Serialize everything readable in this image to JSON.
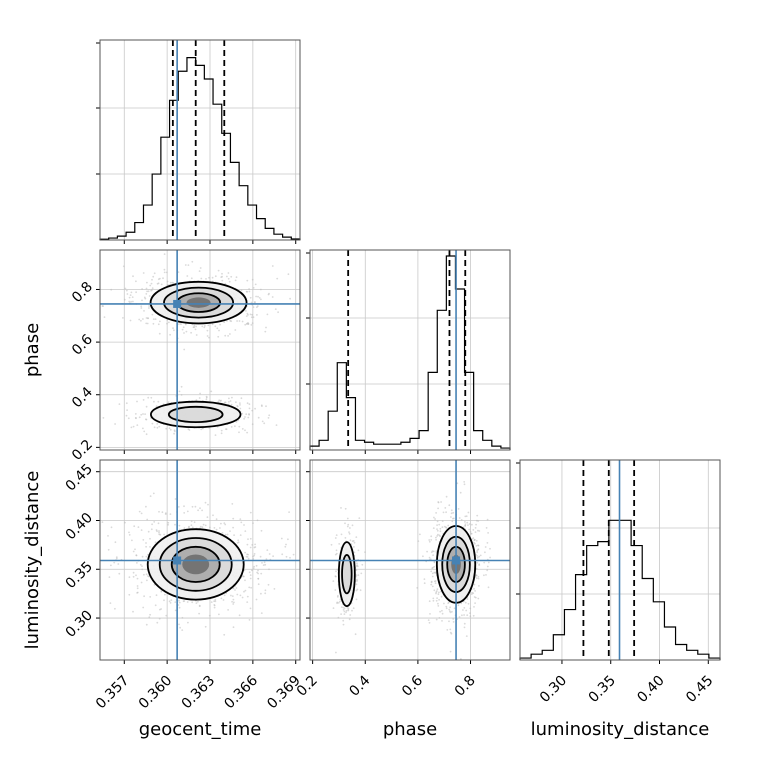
{
  "chart_data": {
    "type": "corner",
    "parameters": [
      "geocent_time",
      "phase",
      "luminosity_distance"
    ],
    "labels": {
      "geocent_time": "geocent_time",
      "phase": "phase",
      "luminosity_distance": "luminosity_distance"
    },
    "ranges": {
      "geocent_time": [
        0.3553,
        0.3693
      ],
      "phase": [
        0.19,
        0.95
      ],
      "luminosity_distance": [
        0.257,
        0.462
      ]
    },
    "ticks": {
      "geocent_time": [
        "0.357",
        "0.360",
        "0.363",
        "0.366",
        "0.369"
      ],
      "phase": [
        "0.2",
        "0.4",
        "0.6",
        "0.8"
      ],
      "luminosity_distance": [
        "0.30",
        "0.35",
        "0.40",
        "0.45"
      ]
    },
    "truths": {
      "geocent_time": 0.3607,
      "phase": 0.745,
      "luminosity_distance": 0.359
    },
    "quantiles": {
      "geocent_time": [
        0.3604,
        0.362,
        0.364
      ],
      "phase": [
        0.335,
        0.72,
        0.78
      ],
      "luminosity_distance": [
        0.322,
        0.348,
        0.374
      ]
    },
    "histograms": {
      "geocent_time": [
        0.004,
        0.01,
        0.02,
        0.04,
        0.09,
        0.18,
        0.34,
        0.53,
        0.72,
        0.87,
        0.94,
        0.9,
        0.83,
        0.7,
        0.55,
        0.4,
        0.28,
        0.18,
        0.11,
        0.06,
        0.03,
        0.015,
        0.005
      ],
      "phase": [
        0.02,
        0.05,
        0.2,
        0.45,
        0.27,
        0.05,
        0.04,
        0.03,
        0.03,
        0.03,
        0.04,
        0.06,
        0.1,
        0.4,
        0.72,
        1.0,
        0.83,
        0.4,
        0.1,
        0.05,
        0.02,
        0.01
      ],
      "luminosity_distance": [
        0.01,
        0.03,
        0.05,
        0.13,
        0.26,
        0.44,
        0.59,
        0.61,
        0.72,
        0.72,
        0.59,
        0.42,
        0.3,
        0.17,
        0.08,
        0.05,
        0.03,
        0.01
      ]
    },
    "grid": true,
    "truth_color": "#4682b4",
    "line_color": "#000000"
  }
}
